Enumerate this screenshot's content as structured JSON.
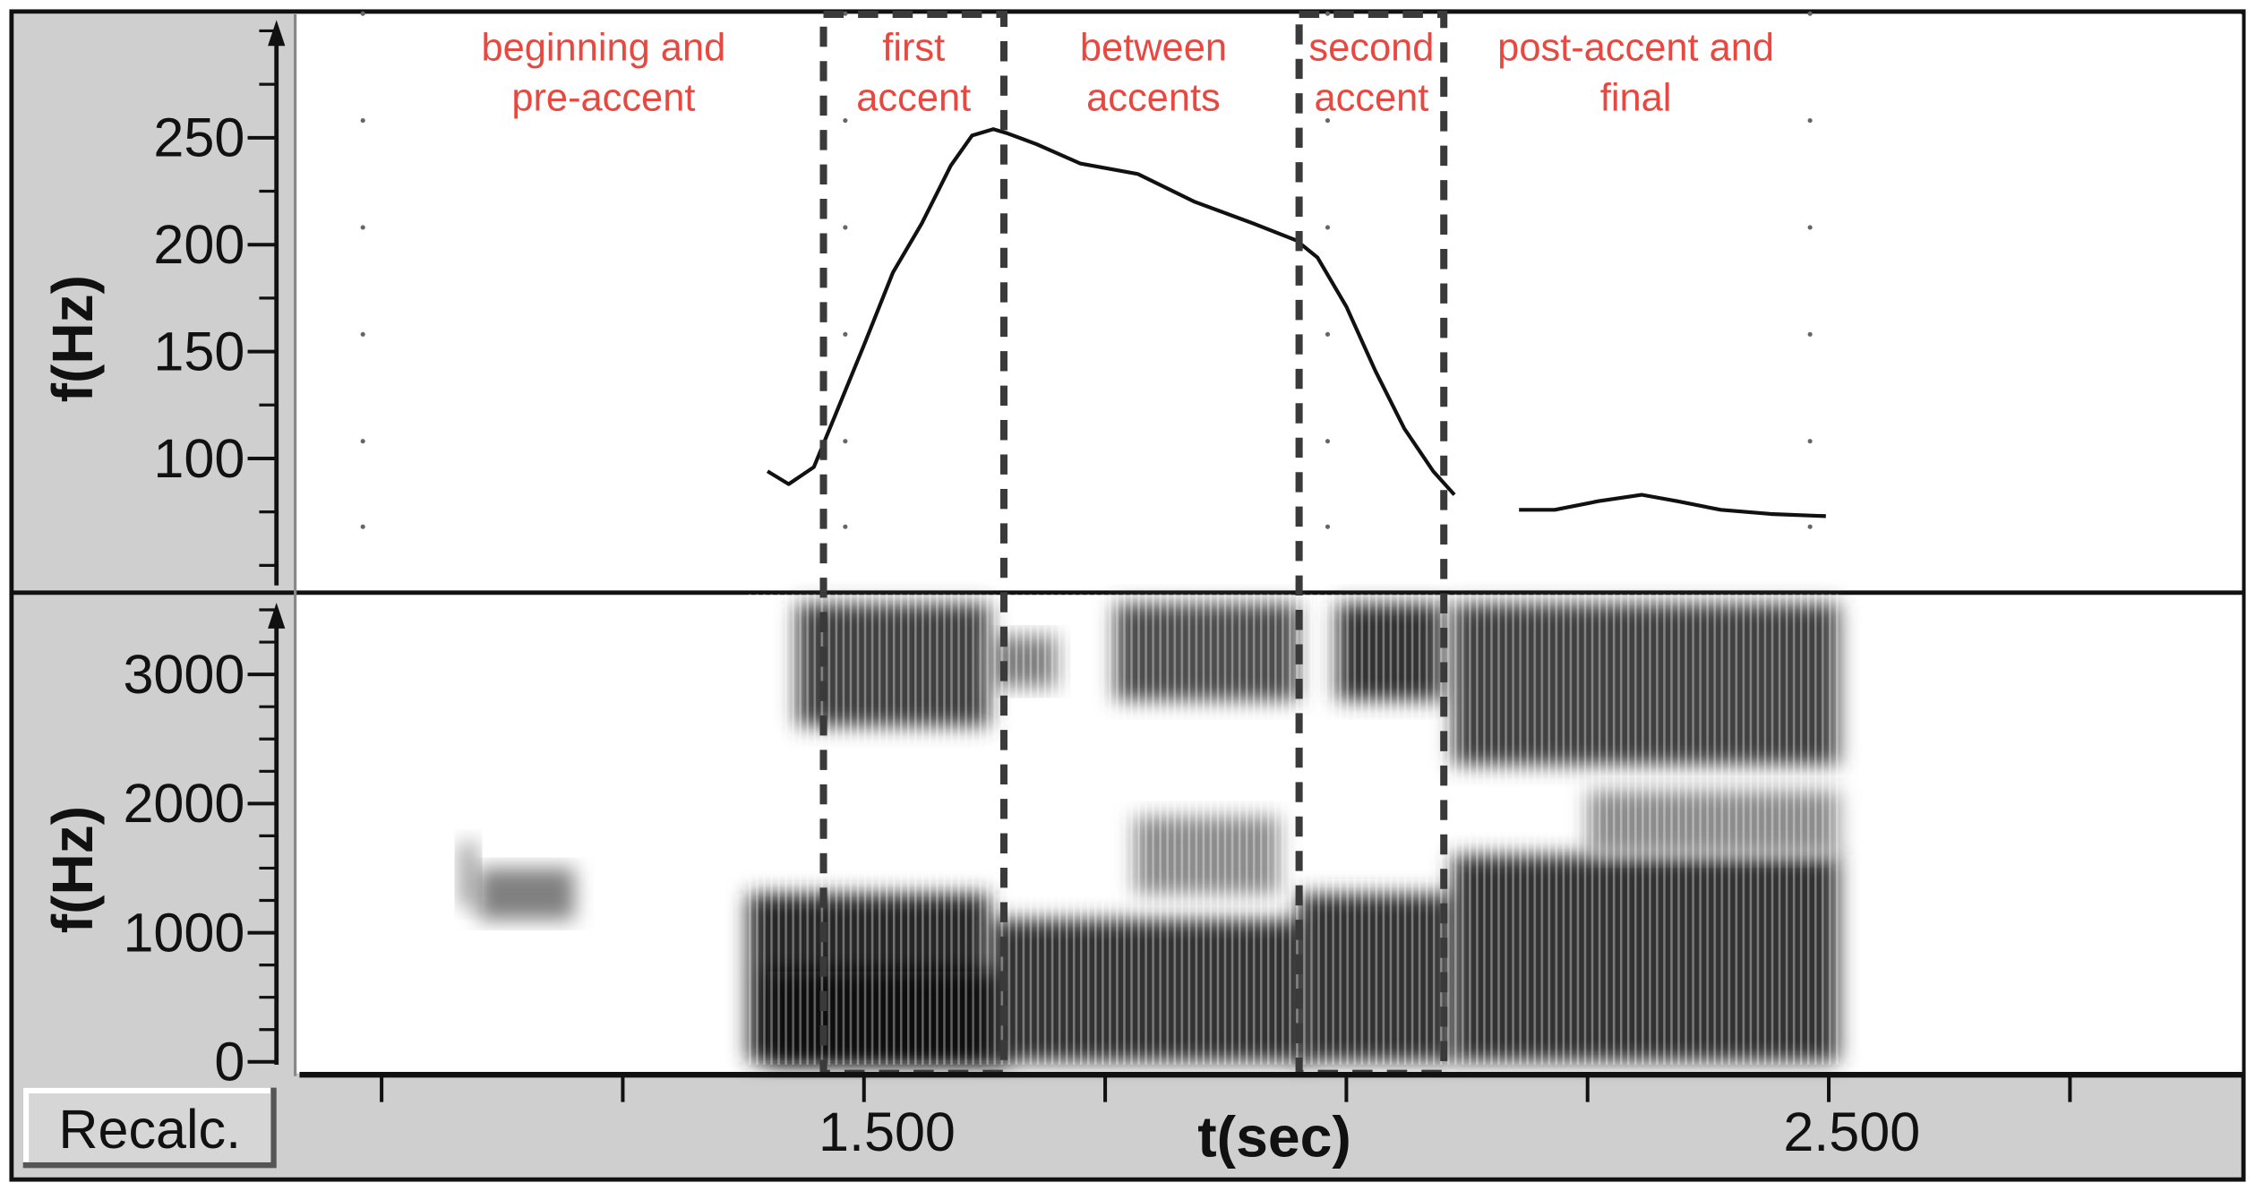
{
  "chart_data": [
    {
      "type": "line",
      "panel": "pitch",
      "ylabel": "f(Hz)",
      "ylim": [
        43,
        304
      ],
      "xlim": [
        0.91,
        3.02
      ],
      "yticks": [
        100,
        150,
        200,
        250
      ],
      "ytick_labels": [
        "100",
        "150",
        "200",
        "250"
      ],
      "grid": "dotted points",
      "line_color": "#111111",
      "series": [
        {
          "x": [
            1.4,
            1.422,
            1.448,
            1.47,
            1.5,
            1.53,
            1.56,
            1.59,
            1.612,
            1.634,
            1.649,
            1.679,
            1.724,
            1.784,
            1.843,
            1.903,
            1.948,
            1.97,
            2.0,
            2.03,
            2.06,
            2.09,
            2.112
          ],
          "y": [
            94,
            88,
            96,
            120,
            153,
            187,
            210,
            237,
            251,
            254,
            252,
            247,
            238,
            233,
            220,
            210,
            202,
            194,
            171,
            141,
            114,
            94,
            83
          ]
        },
        {
          "x": [
            2.179,
            2.216,
            2.261,
            2.306,
            2.343,
            2.388,
            2.44,
            2.497
          ],
          "y": [
            76,
            76,
            80,
            83,
            80,
            76,
            74,
            73
          ]
        }
      ]
    },
    {
      "type": "heatmap",
      "panel": "spectrogram",
      "ylabel": "f(Hz)",
      "xlabel": "t(sec)",
      "ylim": [
        0,
        3550
      ],
      "xlim": [
        0.91,
        3.02
      ],
      "yticks": [
        0,
        1000,
        2000,
        3000
      ],
      "ytick_labels": [
        "0",
        "1000",
        "2000",
        "3000"
      ],
      "xticks": [
        1.0,
        1.25,
        1.5,
        1.75,
        2.0,
        2.25,
        2.5,
        2.75
      ],
      "xtick_labels": [
        "",
        "",
        "1.500",
        "",
        "",
        "",
        "2.500",
        ""
      ],
      "energy_regions": [
        {
          "t": [
            1.08,
            1.1
          ],
          "f": [
            1200,
            1700
          ],
          "level": 0.35
        },
        {
          "t": [
            1.1,
            1.2
          ],
          "f": [
            1100,
            1500
          ],
          "level": 0.5
        },
        {
          "t": [
            1.38,
            1.63
          ],
          "f": [
            0,
            1300
          ],
          "level": 0.85
        },
        {
          "t": [
            1.4,
            1.65
          ],
          "f": [
            0,
            700
          ],
          "level": 0.95
        },
        {
          "t": [
            1.43,
            1.63
          ],
          "f": [
            2600,
            3550
          ],
          "level": 0.75
        },
        {
          "t": [
            1.63,
            1.7
          ],
          "f": [
            2900,
            3300
          ],
          "level": 0.5
        },
        {
          "t": [
            1.63,
            1.96
          ],
          "f": [
            0,
            1100
          ],
          "level": 0.8
        },
        {
          "t": [
            1.76,
            1.95
          ],
          "f": [
            2800,
            3550
          ],
          "level": 0.7
        },
        {
          "t": [
            1.78,
            1.93
          ],
          "f": [
            1300,
            1900
          ],
          "level": 0.45
        },
        {
          "t": [
            1.99,
            2.1
          ],
          "f": [
            2800,
            3550
          ],
          "level": 0.8
        },
        {
          "t": [
            1.95,
            2.11
          ],
          "f": [
            0,
            1300
          ],
          "level": 0.8
        },
        {
          "t": [
            2.11,
            2.51
          ],
          "f": [
            0,
            1600
          ],
          "level": 0.8
        },
        {
          "t": [
            2.11,
            2.51
          ],
          "f": [
            2300,
            3550
          ],
          "level": 0.75
        },
        {
          "t": [
            2.25,
            2.51
          ],
          "f": [
            1600,
            2100
          ],
          "level": 0.45
        }
      ]
    }
  ],
  "segments": [
    {
      "label_line1": "beginning and",
      "label_line2": "pre-accent",
      "t_center": 1.23
    },
    {
      "label_line1": "first",
      "label_line2": "accent",
      "t_start": 1.458,
      "t_end": 1.645
    },
    {
      "label_line1": "between",
      "label_line2": "accents",
      "t_center": 1.8
    },
    {
      "label_line1": "second",
      "label_line2": "accent",
      "t_start": 1.951,
      "t_end": 2.101
    },
    {
      "label_line1": "post-accent and",
      "label_line2": "final",
      "t_center": 2.3
    }
  ],
  "colors": {
    "annotation": "#e8483f",
    "dashes": "#3a3a3a",
    "panel_gray": "#cfcfcf"
  },
  "recalc_button": "Recalc."
}
